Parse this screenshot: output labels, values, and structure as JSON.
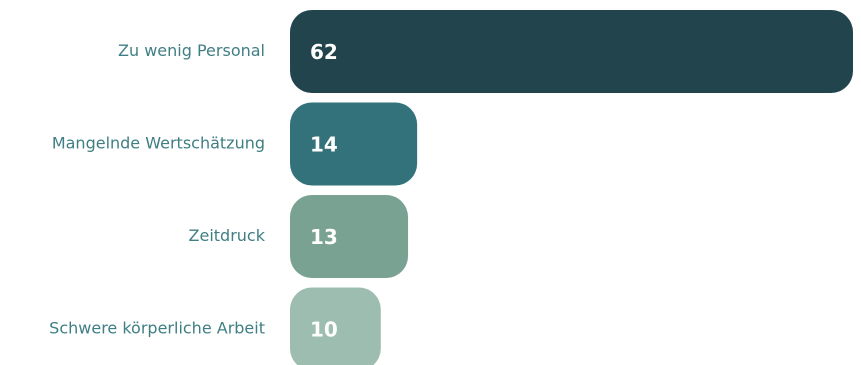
{
  "chart_data": {
    "type": "bar",
    "orientation": "horizontal",
    "categories": [
      "Zu wenig Personal",
      "Mangelnde Wertschätzung",
      "Zeitdruck",
      "Schwere körperliche Arbeit"
    ],
    "values": [
      62,
      14,
      13,
      10
    ],
    "xlim": [
      0,
      62
    ],
    "grid": false,
    "legend": "none",
    "colors": [
      "#21444d",
      "#33727a",
      "#7aa293",
      "#9ebdb1"
    ],
    "value_label_color": "#ffffff",
    "category_label_color": "#3f7f84"
  }
}
